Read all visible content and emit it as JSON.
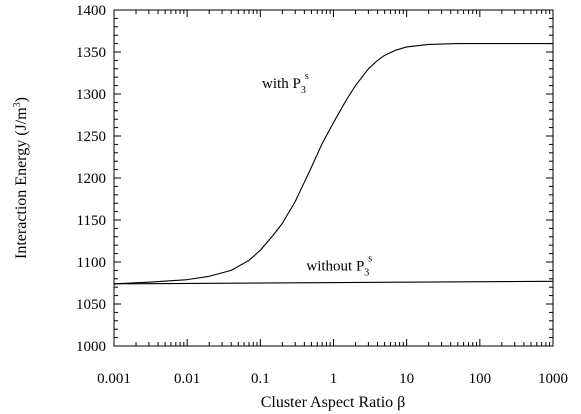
{
  "chart_data": {
    "type": "line",
    "title": "",
    "xlabel": "Cluster Aspect Ratio β",
    "ylabel": "Interaction Energy (J/m",
    "ylabel_sup": "3",
    "ylabel_close": ")",
    "xscale": "log",
    "xlim": [
      0.001,
      1000
    ],
    "ylim": [
      1000,
      1400
    ],
    "x_ticks": [
      0.001,
      0.01,
      0.1,
      1,
      10,
      100,
      1000
    ],
    "x_tick_labels": [
      "0.001",
      "0.01",
      "0.1",
      "1",
      "10",
      "100",
      "1000"
    ],
    "y_ticks": [
      1000,
      1050,
      1100,
      1150,
      1200,
      1250,
      1300,
      1350,
      1400
    ],
    "y_tick_labels": [
      "1000",
      "1050",
      "1100",
      "1150",
      "1200",
      "1250",
      "1300",
      "1350",
      "1400"
    ],
    "grid": false,
    "series": [
      {
        "values_x": [
          0.001,
          0.003,
          0.01,
          0.02,
          0.04,
          0.07,
          0.1,
          0.15,
          0.2,
          0.3,
          0.4,
          0.5,
          0.7,
          1,
          1.5,
          2,
          3,
          4,
          5,
          7,
          10,
          20,
          50,
          100,
          1000
        ],
        "values_y": [
          1074,
          1076,
          1079,
          1083,
          1090,
          1102,
          1114,
          1132,
          1146,
          1172,
          1195,
          1213,
          1241,
          1266,
          1293,
          1310,
          1330,
          1340,
          1346,
          1352,
          1356,
          1359,
          1360,
          1360,
          1360
        ]
      },
      {
        "values_x": [
          0.001,
          1000
        ],
        "values_y": [
          1074,
          1077
        ]
      }
    ],
    "annotations": [
      {
        "main": "with P",
        "sub": "3",
        "sup": "s",
        "x": 0.22,
        "y": 1307
      },
      {
        "main": "without P",
        "sub": "3",
        "sup": "s",
        "x": 1.2,
        "y": 1090
      }
    ]
  }
}
